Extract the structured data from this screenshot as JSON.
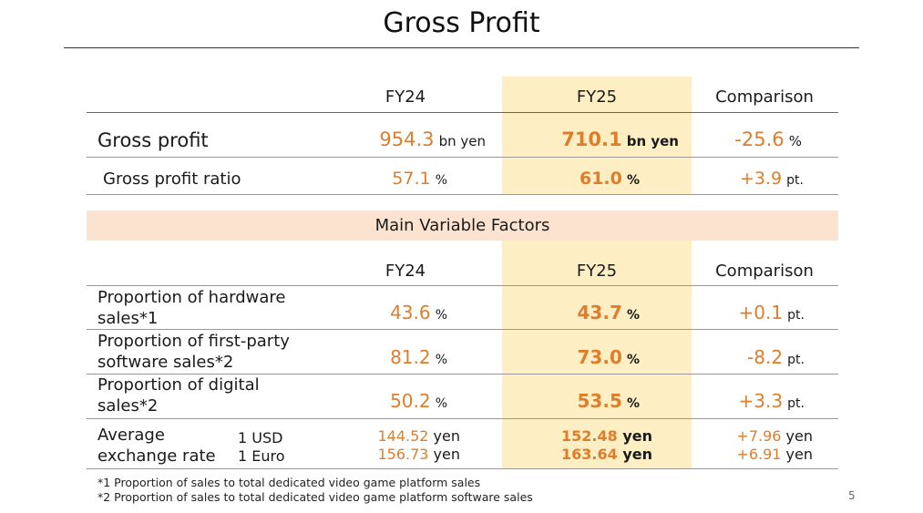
{
  "title": "Gross Profit",
  "columns": {
    "fy24": "FY24",
    "fy25": "FY25",
    "comparison": "Comparison"
  },
  "gross_profit": {
    "label": "Gross profit",
    "fy24": "954.3",
    "fy24_unit": "bn yen",
    "fy25": "710.1",
    "fy25_unit": "bn yen",
    "cmp": "-25.6",
    "cmp_unit": "%"
  },
  "gross_profit_ratio": {
    "label": "Gross profit ratio",
    "fy24": "57.1",
    "fy24_unit": "%",
    "fy25": "61.0",
    "fy25_unit": "%",
    "cmp": "+3.9",
    "cmp_unit": "pt."
  },
  "factors_title": "Main Variable Factors",
  "hardware": {
    "label1": "Proportion of hardware",
    "label2": "sales*1",
    "fy24": "43.6",
    "fy24_unit": "%",
    "fy25": "43.7",
    "fy25_unit": "%",
    "cmp": "+0.1",
    "cmp_unit": "pt."
  },
  "first_party": {
    "label1": "Proportion of first-party",
    "label2": "software sales*2",
    "fy24": "81.2",
    "fy24_unit": "%",
    "fy25": "73.0",
    "fy25_unit": "%",
    "cmp": "-8.2",
    "cmp_unit": "pt."
  },
  "digital": {
    "label1": "Proportion of digital",
    "label2": "sales*2",
    "fy24": "50.2",
    "fy24_unit": "%",
    "fy25": "53.5",
    "fy25_unit": "%",
    "cmp": "+3.3",
    "cmp_unit": "pt."
  },
  "exchange": {
    "label1": "Average",
    "label2": "exchange rate",
    "usd_label": "1 USD",
    "euro_label": "1 Euro",
    "usd_fy24": "144.52",
    "euro_fy24": "156.73",
    "usd_fy25": "152.48",
    "euro_fy25": "163.64",
    "usd_cmp": "+7.96",
    "euro_cmp": "+6.91",
    "unit": "yen"
  },
  "notes": [
    "*1 Proportion of sales to total dedicated video game platform sales",
    "*2 Proportion of sales to total dedicated video game platform software sales"
  ],
  "page_number": "5"
}
